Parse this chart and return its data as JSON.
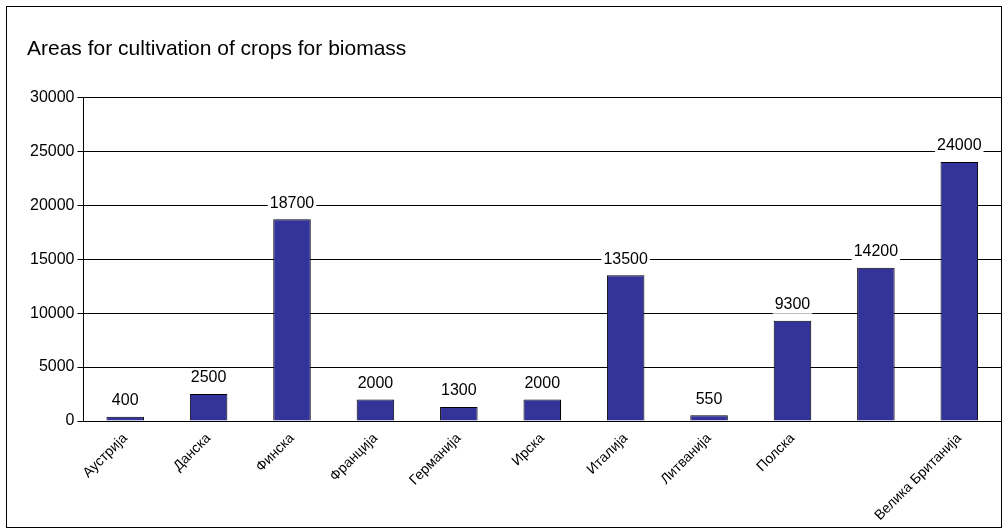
{
  "chart_data": {
    "type": "bar",
    "title": "Areas for cultivation of crops for biomass",
    "categories": [
      "Аустрија",
      "Данска",
      "Финска",
      "Франција",
      "Германија",
      "Ирска",
      "Италија",
      "Литванија",
      "Полска",
      null,
      "Велика Британија"
    ],
    "values": [
      400,
      2500,
      18700,
      2000,
      1300,
      2000,
      13500,
      550,
      9300,
      14200,
      24000
    ],
    "color": "#333399",
    "ylim": [
      0,
      30000
    ],
    "yticks": [
      0,
      5000,
      10000,
      15000,
      20000,
      25000,
      30000
    ],
    "grid": "y",
    "legend": false,
    "data_labels": true
  }
}
